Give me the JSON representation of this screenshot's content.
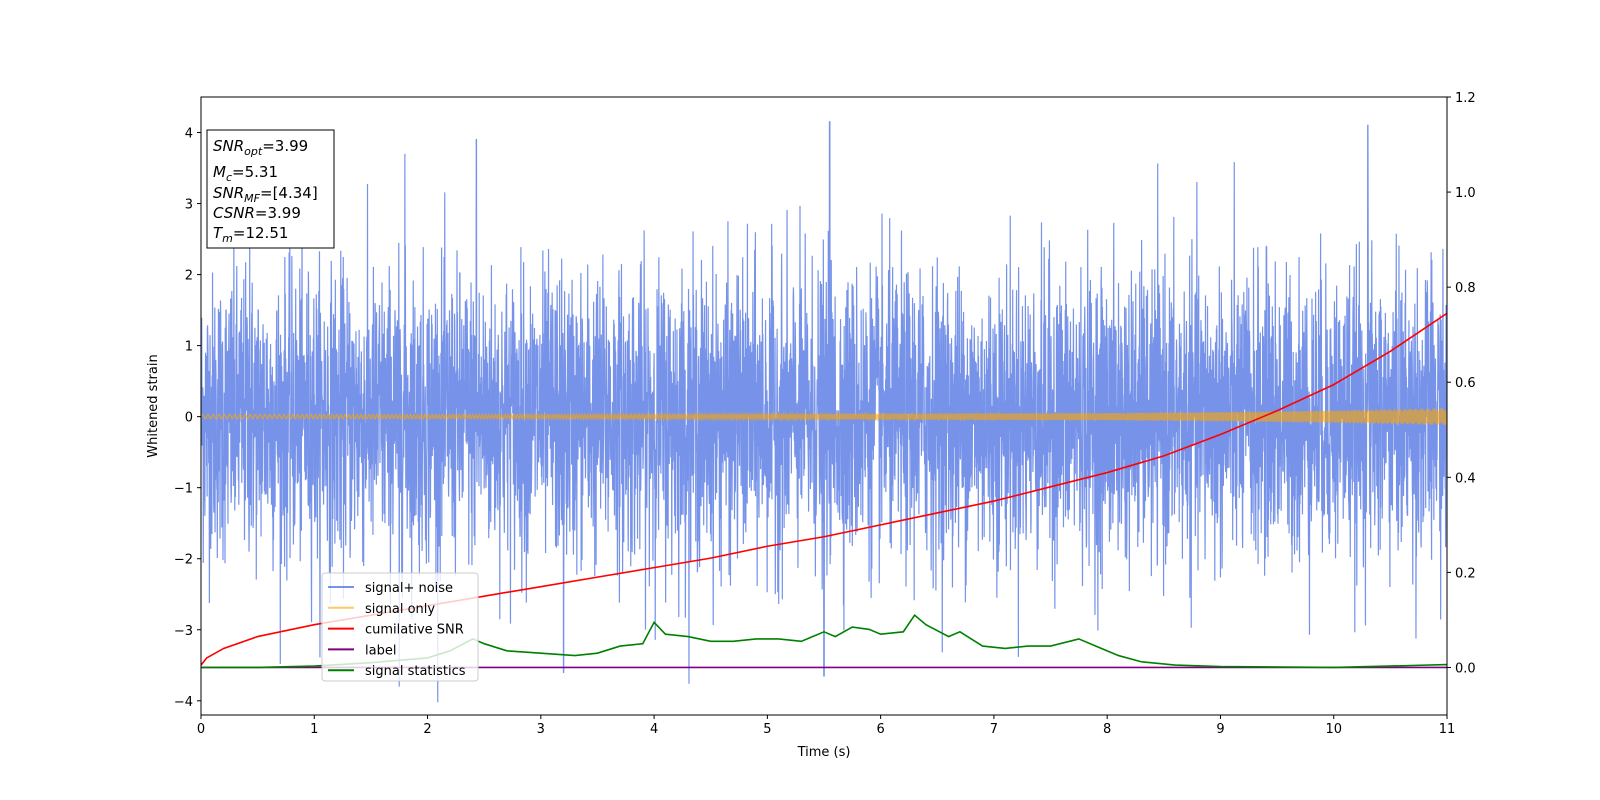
{
  "chart_data": {
    "type": "line",
    "xlabel": "Time (s)",
    "ylabel": "Whitened strain",
    "xlim": [
      0,
      11
    ],
    "ylim": [
      -4.2,
      4.5
    ],
    "y2lim": [
      -0.1,
      1.2
    ],
    "x_ticks": [
      "0",
      "1",
      "2",
      "3",
      "4",
      "5",
      "6",
      "7",
      "8",
      "9",
      "10",
      "11"
    ],
    "y_ticks": [
      "−4",
      "−3",
      "−2",
      "−1",
      "0",
      "1",
      "2",
      "3",
      "4"
    ],
    "y2_ticks": [
      "0.0",
      "0.2",
      "0.4",
      "0.6",
      "0.8",
      "1.0",
      "1.2"
    ],
    "grid": false,
    "legend_position": "lower-left",
    "legend": [
      {
        "label": "signal+ noise",
        "color": "#4169e1"
      },
      {
        "label": "signal only",
        "color": "#ffa500"
      },
      {
        "label": "cumilative SNR",
        "color": "#ff0000"
      },
      {
        "label": "label",
        "color": "#800080"
      },
      {
        "label": "signal statistics",
        "color": "#008000"
      }
    ],
    "info_box": {
      "snr_opt": {
        "sym": "SNR",
        "sub": "opt",
        "value": "=3.99"
      },
      "mc": {
        "sym": "M",
        "sub": "c",
        "value": "=5.31"
      },
      "snr_mf": {
        "sym": "SNR",
        "sub": "MF",
        "value": "=[4.34]"
      },
      "csnr": {
        "sym": "CSNR",
        "value": "=3.99"
      },
      "tm": {
        "sym": "T",
        "sub": "m",
        "value": "=12.51"
      }
    },
    "series": [
      {
        "name": "signal+ noise",
        "axis": "left",
        "description_values": {
          "noise_sigma": 1.0,
          "peak_examples": [
            [
              0.43,
              2.5
            ],
            [
              1.8,
              3.7
            ],
            [
              2.43,
              3.9
            ],
            [
              5.55,
              4.15
            ],
            [
              10.3,
              4.1
            ],
            [
              1.75,
              -3.8
            ],
            [
              5.5,
              -3.65
            ],
            [
              3.2,
              -3.6
            ]
          ]
        }
      },
      {
        "name": "signal only",
        "axis": "left",
        "envelope_x": [
          0,
          2,
          4,
          6,
          8,
          9,
          10,
          11
        ],
        "envelope_amp": [
          0.03,
          0.03,
          0.035,
          0.04,
          0.05,
          0.065,
          0.09,
          0.12
        ]
      },
      {
        "name": "cumilative SNR",
        "axis": "right",
        "x": [
          0,
          0.05,
          0.2,
          0.5,
          1,
          1.5,
          2,
          2.5,
          3,
          3.5,
          4,
          4.5,
          5,
          5.5,
          6,
          6.5,
          7,
          7.5,
          8,
          8.5,
          9,
          9.5,
          10,
          10.5,
          11
        ],
        "y": [
          0.005,
          0.02,
          0.04,
          0.065,
          0.09,
          0.11,
          0.13,
          0.15,
          0.17,
          0.19,
          0.21,
          0.23,
          0.255,
          0.275,
          0.3,
          0.325,
          0.35,
          0.38,
          0.41,
          0.445,
          0.49,
          0.54,
          0.595,
          0.665,
          0.745
        ]
      },
      {
        "name": "label",
        "axis": "right",
        "x": [
          0,
          11
        ],
        "y": [
          0,
          0
        ]
      },
      {
        "name": "signal statistics",
        "axis": "right",
        "x": [
          0,
          0.5,
          1,
          1.5,
          2,
          2.2,
          2.4,
          2.5,
          2.7,
          3,
          3.3,
          3.5,
          3.7,
          3.9,
          4.0,
          4.1,
          4.3,
          4.5,
          4.7,
          4.9,
          5.1,
          5.3,
          5.5,
          5.6,
          5.75,
          5.9,
          6.0,
          6.2,
          6.3,
          6.4,
          6.6,
          6.7,
          6.9,
          7.1,
          7.3,
          7.5,
          7.75,
          7.95,
          8.1,
          8.3,
          8.6,
          9,
          10,
          11
        ],
        "y": [
          0.0,
          0.0,
          0.003,
          0.01,
          0.02,
          0.035,
          0.06,
          0.05,
          0.035,
          0.03,
          0.025,
          0.03,
          0.045,
          0.05,
          0.095,
          0.07,
          0.065,
          0.055,
          0.055,
          0.06,
          0.06,
          0.055,
          0.075,
          0.065,
          0.085,
          0.08,
          0.07,
          0.075,
          0.11,
          0.09,
          0.065,
          0.075,
          0.045,
          0.04,
          0.045,
          0.045,
          0.06,
          0.04,
          0.025,
          0.012,
          0.005,
          0.002,
          0.0,
          0.006
        ]
      }
    ]
  }
}
